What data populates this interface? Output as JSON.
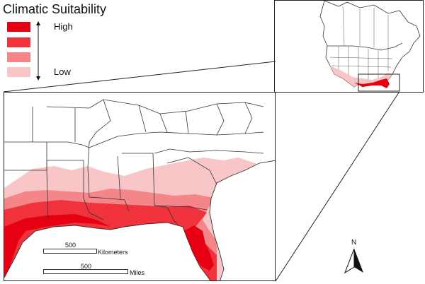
{
  "legend": {
    "title": "Climatic Suitability",
    "high_label": "High",
    "low_label": "Low",
    "classes": [
      {
        "color": "#e60012"
      },
      {
        "color": "#f0323c"
      },
      {
        "color": "#f4868a"
      },
      {
        "color": "#f9c6c8"
      }
    ]
  },
  "scale_bars": {
    "km_value": "500",
    "km_unit": "Kilometers",
    "mi_value": "500",
    "mi_unit": "Miles"
  },
  "north_arrow": {
    "letter": "N"
  },
  "colors": {
    "border": "#222222",
    "state_lines": "#333333",
    "water": "#ffffff"
  }
}
